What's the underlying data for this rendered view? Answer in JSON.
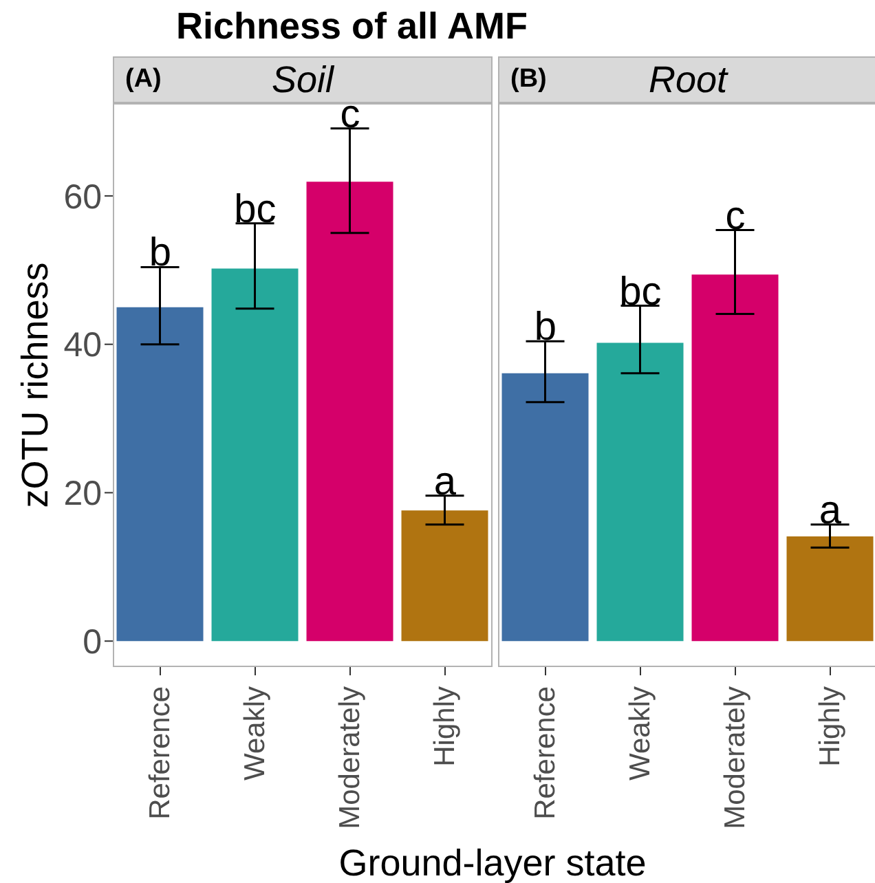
{
  "chart_data": [
    {
      "type": "bar",
      "title": "Richness of all AMF",
      "subtitle": "Soil",
      "xlabel": "Ground-layer state",
      "ylabel": "zOTU richness",
      "categories": [
        "Reference",
        "Weakly",
        "Moderately",
        "Highly"
      ],
      "values": [
        45.0,
        50.2,
        61.9,
        17.6
      ],
      "colors": [
        "#3f6fa5",
        "#25a99b",
        "#d5006a",
        "#b07411"
      ],
      "errors": [
        [
          40.0,
          50.4
        ],
        [
          44.8,
          56.3
        ],
        [
          55.0,
          69.1
        ],
        [
          15.7,
          19.6
        ]
      ],
      "ylim": [
        -3.5,
        72.5
      ],
      "yticks": [
        0,
        20,
        40,
        60
      ],
      "grid": false,
      "annotations": [
        "(A)",
        {
          "text": "b",
          "x": "Reference",
          "y": 50.4
        },
        {
          "text": "bc",
          "x": "Weakly",
          "y": 56.3
        },
        {
          "text": "c",
          "x": "Moderately",
          "y": 69.1
        },
        {
          "text": "a",
          "x": "Highly",
          "y": 19.6
        }
      ]
    },
    {
      "type": "bar",
      "subtitle": "Root",
      "categories": [
        "Reference",
        "Weakly",
        "Moderately",
        "Highly"
      ],
      "values": [
        36.1,
        40.2,
        49.4,
        14.1
      ],
      "colors": [
        "#3f6fa5",
        "#25a99b",
        "#d5006a",
        "#b07411"
      ],
      "errors": [
        [
          32.2,
          40.4
        ],
        [
          36.1,
          45.2
        ],
        [
          44.1,
          55.4
        ],
        [
          12.6,
          15.7
        ]
      ],
      "ylim": [
        -3.5,
        72.5
      ],
      "yticks": [
        0,
        20,
        40,
        60
      ],
      "grid": false,
      "tick_labels": "x",
      "annotations": [
        "(B)",
        {
          "text": "b",
          "x": "Reference",
          "y": 40.4
        },
        {
          "text": "bc",
          "x": "Weakly",
          "y": 45.2
        },
        {
          "text": "c",
          "x": "Moderately",
          "y": 55.4
        },
        {
          "text": "a",
          "x": "Highly",
          "y": 15.7
        }
      ]
    }
  ]
}
